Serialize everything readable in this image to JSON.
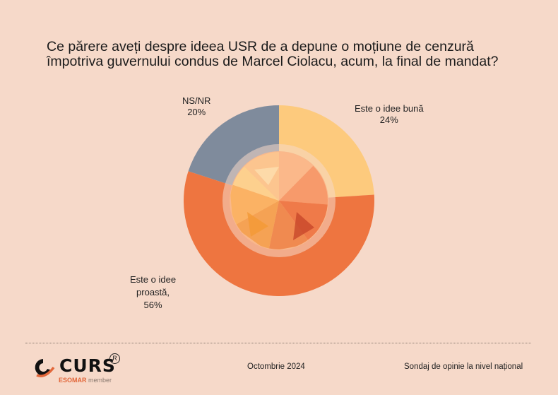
{
  "title": {
    "line1": "Ce părere aveți despre ideea USR de a depune o moțiune de cenzură",
    "line2": "împotriva guvernului condus de Marcel Ciolacu, acum, la final de mandat?"
  },
  "chart_data": {
    "type": "pie",
    "title": "Ce părere aveți despre ideea USR de a depune o moțiune de cenzură împotriva guvernului condus de Marcel Ciolacu, acum, la final de mandat?",
    "categories": [
      "Este o idee bună",
      "Este o idee proastă",
      "NS/NR"
    ],
    "values": [
      24,
      56,
      20
    ],
    "value_labels": [
      "24%",
      "56%",
      "20%"
    ],
    "colors": [
      "#fdca7d",
      "#ee7540",
      "#7f8b9c"
    ],
    "start_angle_deg": 0,
    "direction": "clockwise",
    "legend": "none"
  },
  "footer": {
    "date": "Octombrie 2024",
    "survey": "Sondaj de opinie la nivel național",
    "brand": "CURS",
    "registered": "R",
    "esomar": "ESOMAR",
    "member": "member"
  },
  "colors": {
    "background": "#f6d9c9",
    "accent": "#e2673a"
  }
}
